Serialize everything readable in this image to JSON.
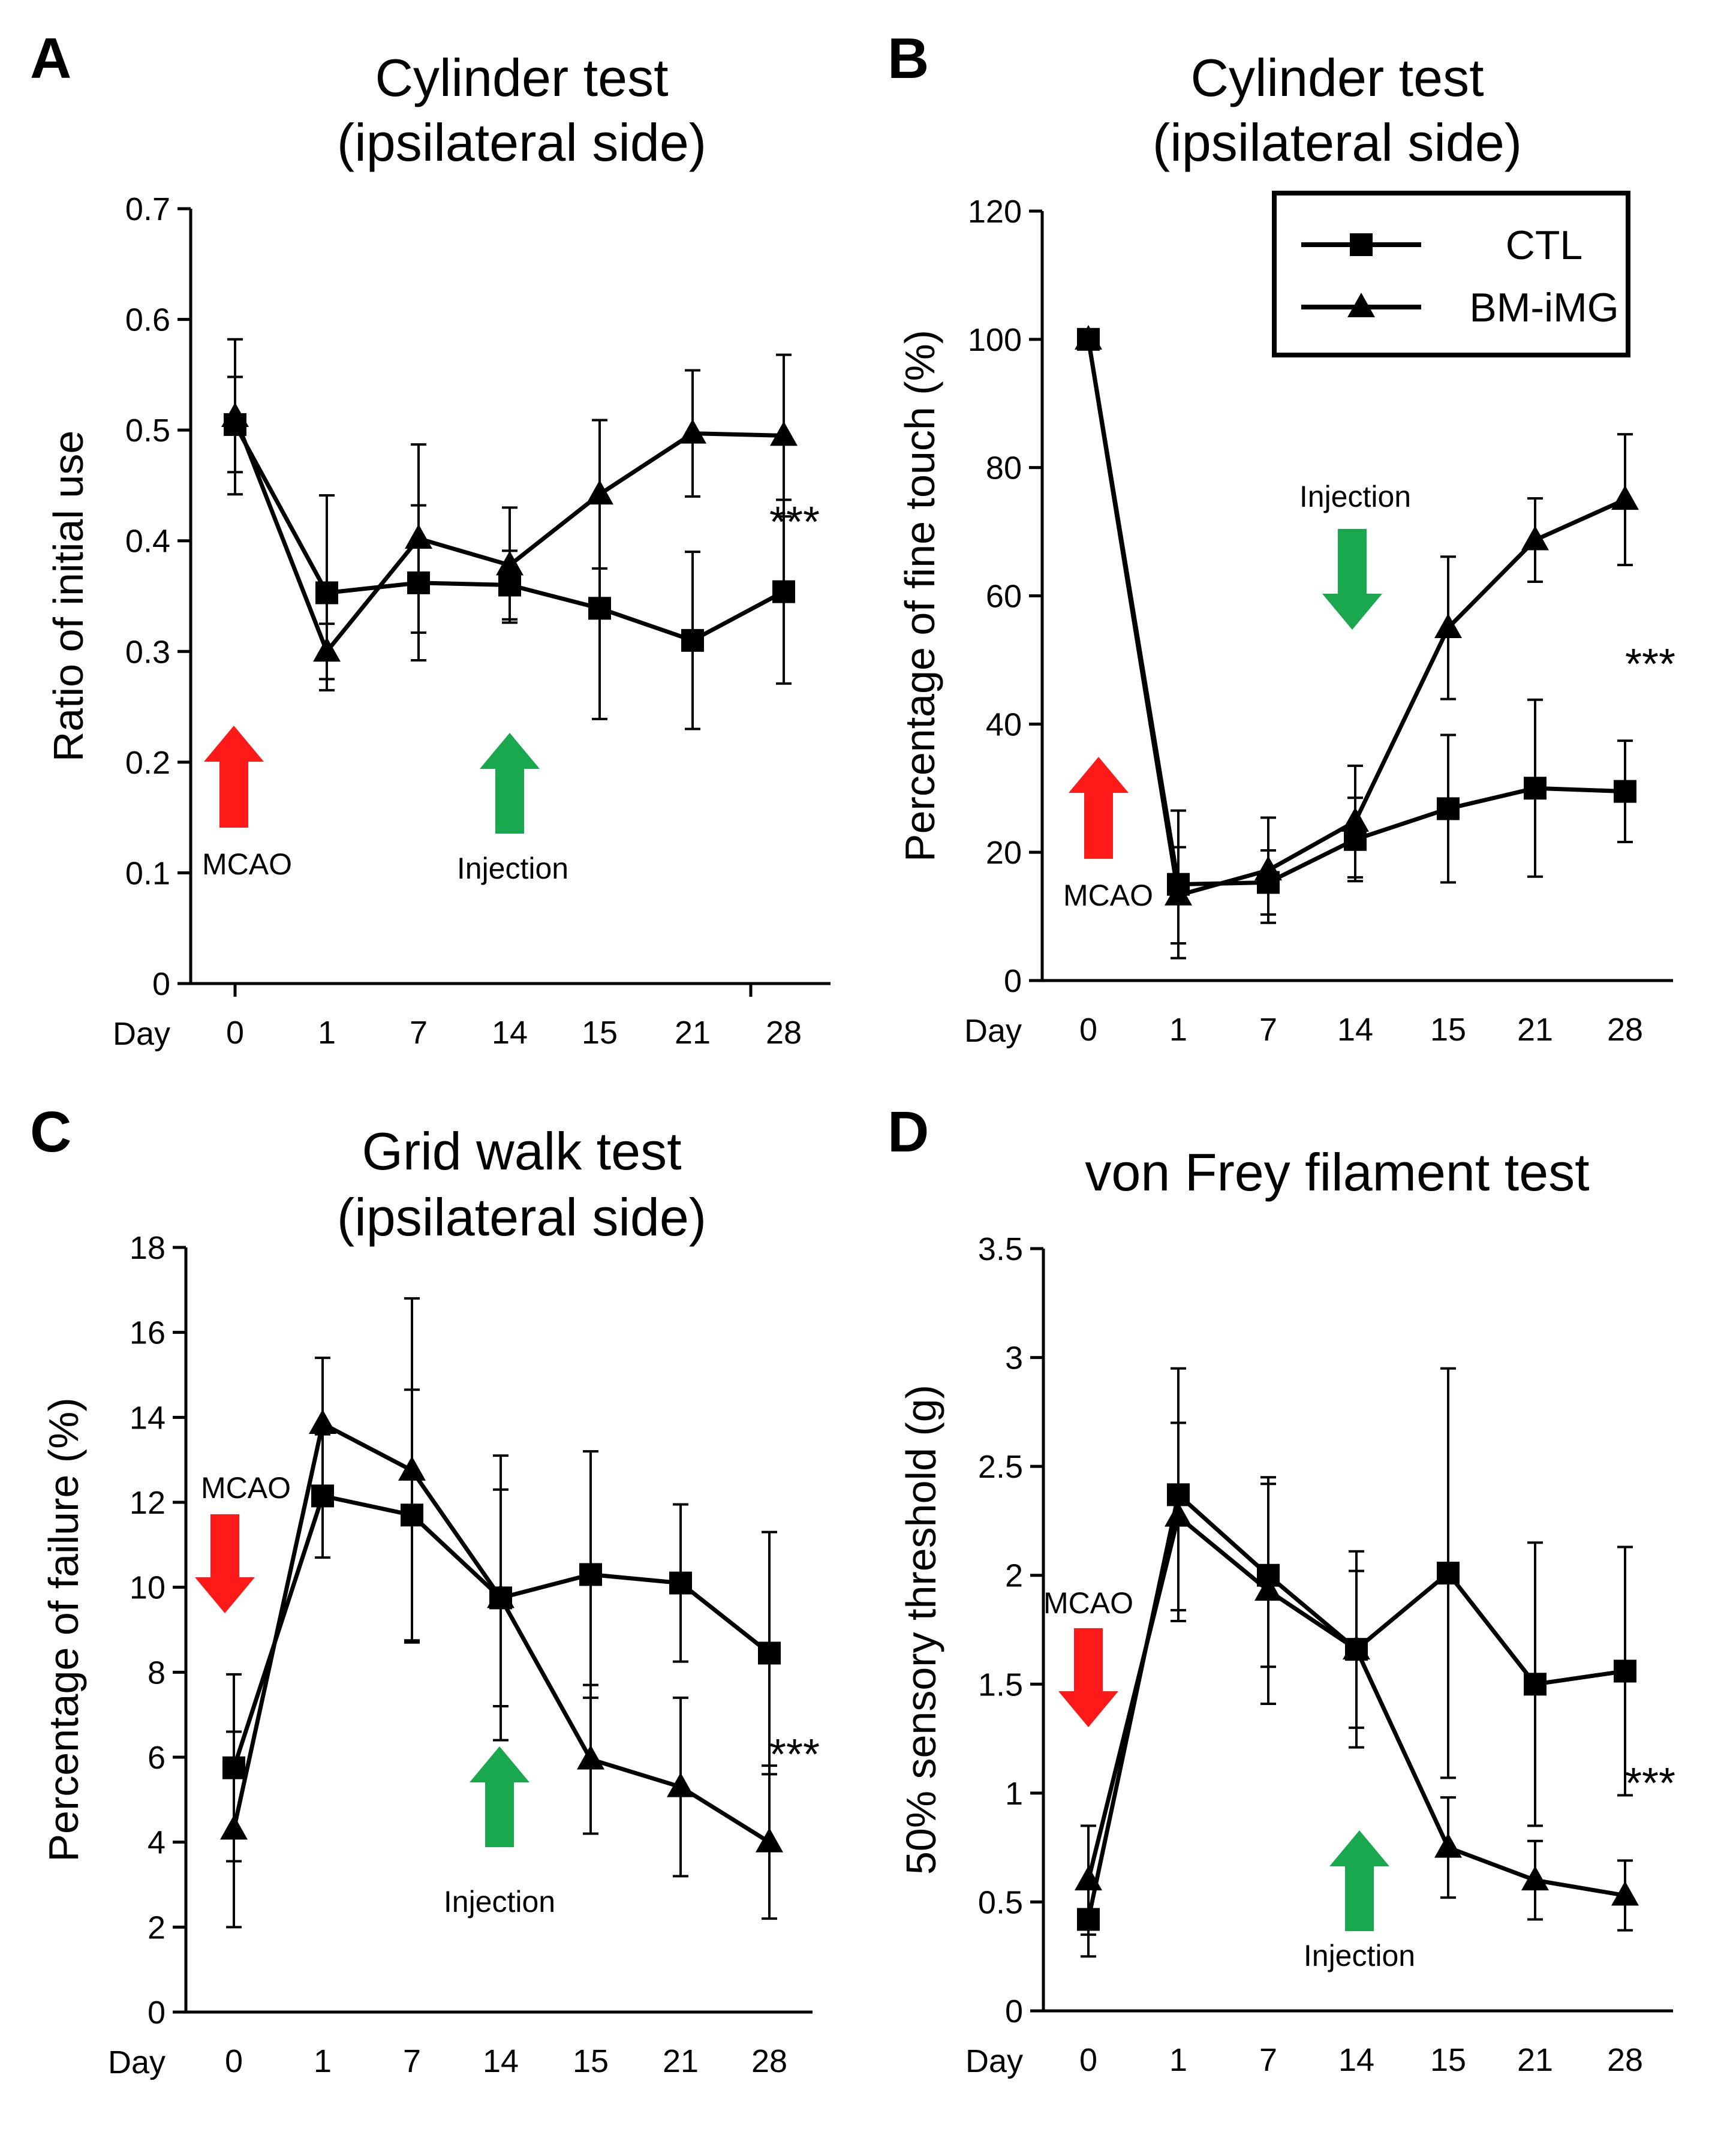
{
  "chart_data": [
    {
      "panel": "A",
      "type": "line",
      "title": [
        "Cylinder test",
        "(ipsilateral side)"
      ],
      "xlabel": "Day",
      "ylabel": "Ratio of initial use",
      "categories": [
        "0",
        "1",
        "7",
        "14",
        "15",
        "21",
        "28"
      ],
      "ylim": [
        0,
        0.7
      ],
      "yticks": [
        "0",
        "0.1",
        "0.2",
        "0.3",
        "0.4",
        "0.5",
        "0.6",
        "0.7"
      ],
      "series": [
        {
          "name": "CTL",
          "marker": "square",
          "values": [
            0.505,
            0.353,
            0.362,
            0.36,
            0.339,
            0.31,
            0.354
          ],
          "errors": [
            0.043,
            0.088,
            0.07,
            0.031,
            0.1,
            0.08,
            0.083
          ]
        },
        {
          "name": "BM-iMG",
          "marker": "triangle",
          "values": [
            0.512,
            0.3,
            0.402,
            0.378,
            0.442,
            0.497,
            0.495
          ],
          "errors": [
            0.07,
            0.025,
            0.085,
            0.052,
            0.067,
            0.057,
            0.073
          ]
        }
      ],
      "annotations": {
        "stars": "***",
        "mcao": "MCAO",
        "injection": "Injection"
      }
    },
    {
      "panel": "B",
      "type": "line",
      "title": [
        "Cylinder test",
        "(ipsilateral side)"
      ],
      "xlabel": "Day",
      "ylabel": "Percentage of fine touch (%)",
      "categories": [
        "0",
        "1",
        "7",
        "14",
        "15",
        "21",
        "28"
      ],
      "ylim": [
        0,
        120
      ],
      "yticks": [
        "0",
        "20",
        "40",
        "60",
        "80",
        "100",
        "120"
      ],
      "series": [
        {
          "name": "CTL",
          "marker": "square",
          "values": [
            100,
            15,
            15.3,
            22,
            26.8,
            30,
            29.5
          ],
          "errors": [
            0,
            11.5,
            5,
            6.5,
            11.5,
            13.8,
            7.9
          ]
        },
        {
          "name": "BM-iMG",
          "marker": "triangle",
          "values": [
            100,
            13.3,
            17.2,
            24.8,
            55,
            68.7,
            75
          ],
          "errors": [
            0,
            7.5,
            8.2,
            8.7,
            11.1,
            6.5,
            10.2
          ]
        }
      ],
      "annotations": {
        "stars": "***",
        "mcao": "MCAO",
        "injection": "Injection"
      }
    },
    {
      "panel": "C",
      "type": "line",
      "title": [
        "Grid walk test",
        "(ipsilateral side)"
      ],
      "xlabel": "Day",
      "ylabel": "Percentage of failure (%)",
      "categories": [
        "0",
        "1",
        "7",
        "14",
        "15",
        "21",
        "28"
      ],
      "ylim": [
        0,
        18
      ],
      "yticks": [
        "0",
        "2",
        "4",
        "6",
        "8",
        "10",
        "12",
        "14",
        "16",
        "18"
      ],
      "series": [
        {
          "name": "CTL",
          "marker": "square",
          "values": [
            5.75,
            12.15,
            11.7,
            9.75,
            10.3,
            10.1,
            8.45
          ],
          "errors": [
            2.2,
            1.45,
            2.95,
            2.55,
            2.9,
            1.85,
            2.85
          ]
        },
        {
          "name": "BM-iMG",
          "marker": "triangle",
          "values": [
            4.3,
            13.85,
            12.75,
            9.75,
            5.95,
            5.3,
            4.0
          ],
          "errors": [
            2.3,
            1.55,
            4.05,
            3.35,
            1.75,
            2.1,
            1.8
          ]
        }
      ],
      "annotations": {
        "stars": "***",
        "mcao": "MCAO",
        "injection": "Injection"
      }
    },
    {
      "panel": "D",
      "type": "line",
      "title": [
        "von Frey filament test"
      ],
      "xlabel": "Day",
      "ylabel": "50% sensory threshold (g)",
      "categories": [
        "0",
        "1",
        "7",
        "14",
        "15",
        "21",
        "28"
      ],
      "ylim": [
        0,
        3.5
      ],
      "yticks": [
        "0",
        "0.5",
        "1",
        "1.5",
        "2",
        "2.5",
        "3",
        "3.5"
      ],
      "series": [
        {
          "name": "CTL",
          "marker": "square",
          "values": [
            0.42,
            2.37,
            2.0,
            1.66,
            2.01,
            1.5,
            1.56
          ],
          "errors": [
            0.17,
            0.58,
            0.42,
            0.36,
            0.94,
            0.65,
            0.57
          ]
        },
        {
          "name": "BM-iMG",
          "marker": "triangle",
          "values": [
            0.6,
            2.27,
            1.93,
            1.66,
            0.75,
            0.6,
            0.53
          ],
          "errors": [
            0.25,
            0.43,
            0.52,
            0.45,
            0.23,
            0.18,
            0.16
          ]
        }
      ],
      "annotations": {
        "stars": "***",
        "mcao": "MCAO",
        "injection": "Injection"
      }
    }
  ],
  "legend": [
    {
      "name": "CTL",
      "marker": "square"
    },
    {
      "name": "BM-iMG",
      "marker": "triangle"
    }
  ],
  "colors": {
    "mcao_arrow": "#ff1a1a",
    "injection_arrow": "#1aa84f",
    "ink": "#000000"
  }
}
